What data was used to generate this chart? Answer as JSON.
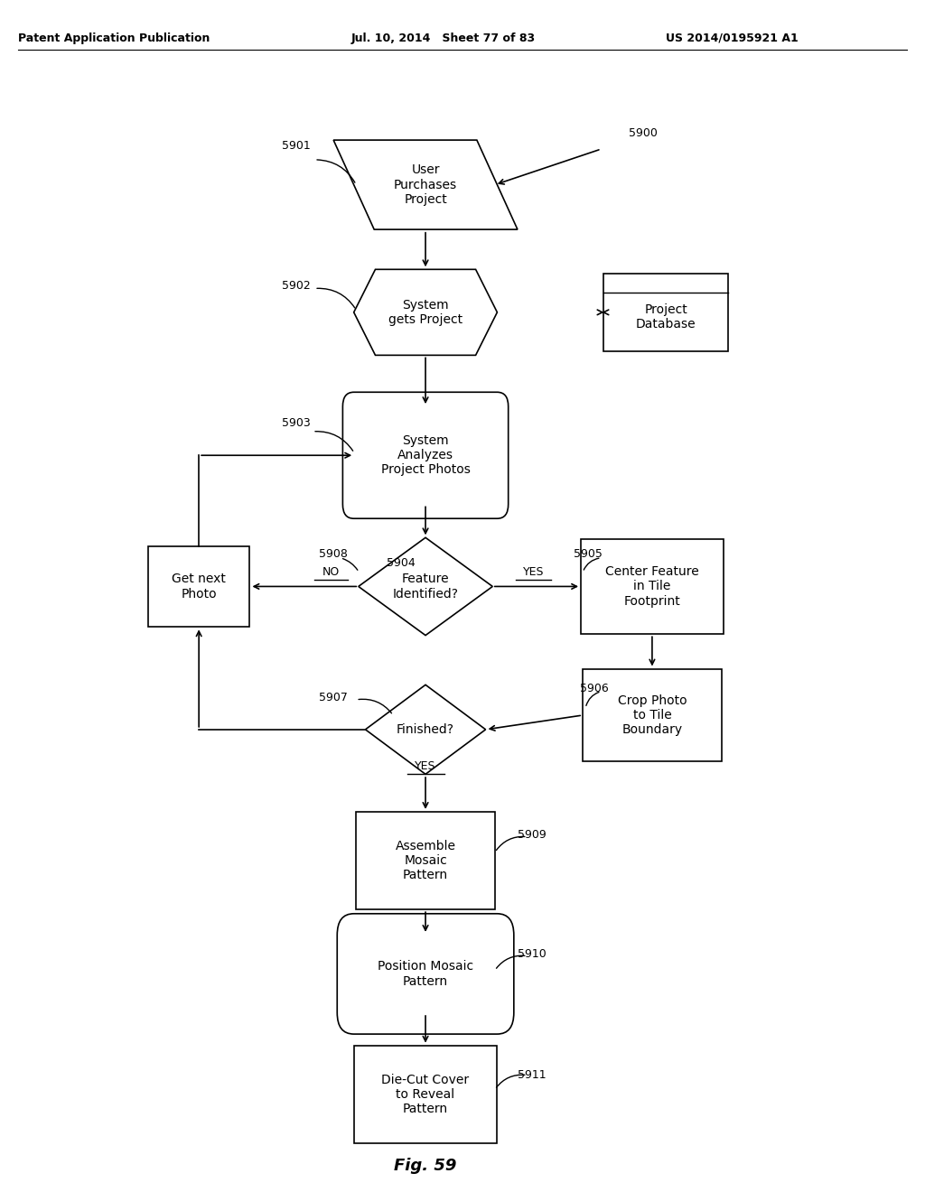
{
  "header_left": "Patent Application Publication",
  "header_mid": "Jul. 10, 2014   Sheet 77 of 83",
  "header_right": "US 2014/0195921 A1",
  "figure_label": "Fig. 59",
  "bg_color": "#ffffff",
  "text_color": "#000000"
}
